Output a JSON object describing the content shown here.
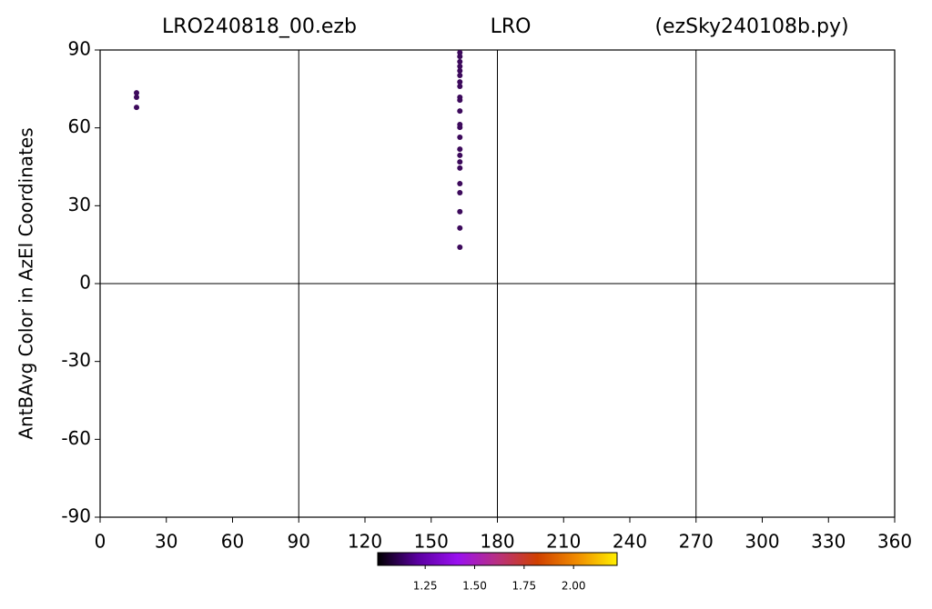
{
  "chart_data": {
    "type": "scatter",
    "titles": [
      "LRO240818_00.ezb",
      "LRO",
      "(ezSky240108b.py)"
    ],
    "ylabel": "AntBAvg Color in AzEl Coordinates",
    "series": [
      {
        "color": "#3d0a5c",
        "x": [
          16.5,
          16.5,
          16.5,
          163,
          163,
          163,
          163,
          163,
          163,
          163,
          163,
          163,
          163,
          163,
          163,
          163,
          163,
          163,
          163,
          163,
          163,
          163,
          163,
          163,
          163,
          163
        ],
        "values": [
          73.5,
          71.8,
          67.9,
          89,
          87.5,
          85.5,
          83.7,
          82,
          80.2,
          77.7,
          76,
          71.8,
          70.7,
          66.5,
          61.3,
          60.2,
          56.4,
          51.8,
          49.4,
          46.9,
          44.5,
          38.5,
          35,
          27.7,
          21.4,
          14
        ]
      }
    ],
    "xlim": [
      0,
      360
    ],
    "xticks": [
      0,
      30,
      60,
      90,
      120,
      150,
      180,
      210,
      240,
      270,
      300,
      330,
      360
    ],
    "ylim": [
      -90,
      90
    ],
    "yticks": [
      -90,
      -60,
      -30,
      0,
      30,
      60,
      90
    ],
    "xgrid": [
      90,
      180,
      270
    ],
    "ygrid": [
      0
    ],
    "colorbar": {
      "clim": [
        1.01,
        2.22
      ],
      "ticks": [
        1.25,
        {
          "value": 1.5,
          "label": "1.50"
        },
        1.75,
        {
          "value": 2.0,
          "label": "2.00"
        }
      ],
      "colors": [
        "#000000",
        "#5a00a0",
        "#9a10f0",
        "#b83080",
        "#d04000",
        "#f08c00",
        "#ffef00"
      ]
    }
  }
}
